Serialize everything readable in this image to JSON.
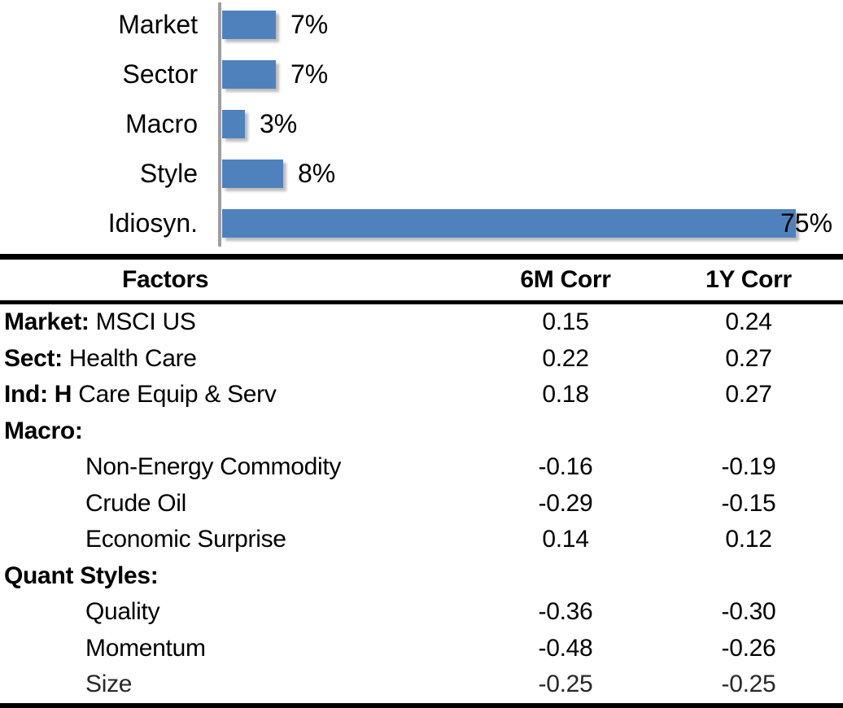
{
  "colors": {
    "bar_blue": "#4F81BD",
    "axis_gray": "#9E9E9E",
    "text": "#000000",
    "rule": "#000000"
  },
  "chart_data": [
    {
      "type": "bar",
      "orientation": "horizontal",
      "title": "",
      "xlabel": "",
      "ylabel": "",
      "grid": false,
      "legend": false,
      "xlim": [
        0,
        75
      ],
      "categories": [
        "Market",
        "Sector",
        "Macro",
        "Style",
        "Idiosyn."
      ],
      "values": [
        7,
        7,
        3,
        8,
        75
      ],
      "labels": [
        "7%",
        "7%",
        "3%",
        "8%",
        "75%"
      ],
      "bar_color": "#4F81BD"
    },
    {
      "type": "table",
      "headers": [
        "Factors",
        "6M Corr",
        "1Y Corr"
      ],
      "rows": [
        {
          "prefix": "Market: ",
          "label": "MSCI US",
          "corr_6m": "0.15",
          "corr_1y": "0.24"
        },
        {
          "prefix": "Sect: ",
          "label": "Health Care",
          "corr_6m": "0.22",
          "corr_1y": "0.27"
        },
        {
          "prefix": "Ind: H ",
          "label": "Care Equip & Serv",
          "corr_6m": "0.18",
          "corr_1y": "0.27"
        },
        {
          "prefix": "Macro:",
          "label": "",
          "corr_6m": "",
          "corr_1y": ""
        },
        {
          "prefix": "",
          "label": "Non-Energy Commodity",
          "corr_6m": "-0.16",
          "corr_1y": "-0.19"
        },
        {
          "prefix": "",
          "label": "Crude Oil",
          "corr_6m": "-0.29",
          "corr_1y": "-0.15"
        },
        {
          "prefix": "",
          "label": "Economic Surprise",
          "corr_6m": "0.14",
          "corr_1y": "0.12"
        },
        {
          "prefix": "Quant Styles:",
          "label": "",
          "corr_6m": "",
          "corr_1y": ""
        },
        {
          "prefix": "",
          "label": "Quality",
          "corr_6m": "-0.36",
          "corr_1y": "-0.30"
        },
        {
          "prefix": "",
          "label": "Momentum",
          "corr_6m": "-0.48",
          "corr_1y": "-0.26"
        },
        {
          "prefix": "",
          "label": "Size",
          "corr_6m": "-0.25",
          "corr_1y": "-0.25"
        }
      ]
    }
  ]
}
